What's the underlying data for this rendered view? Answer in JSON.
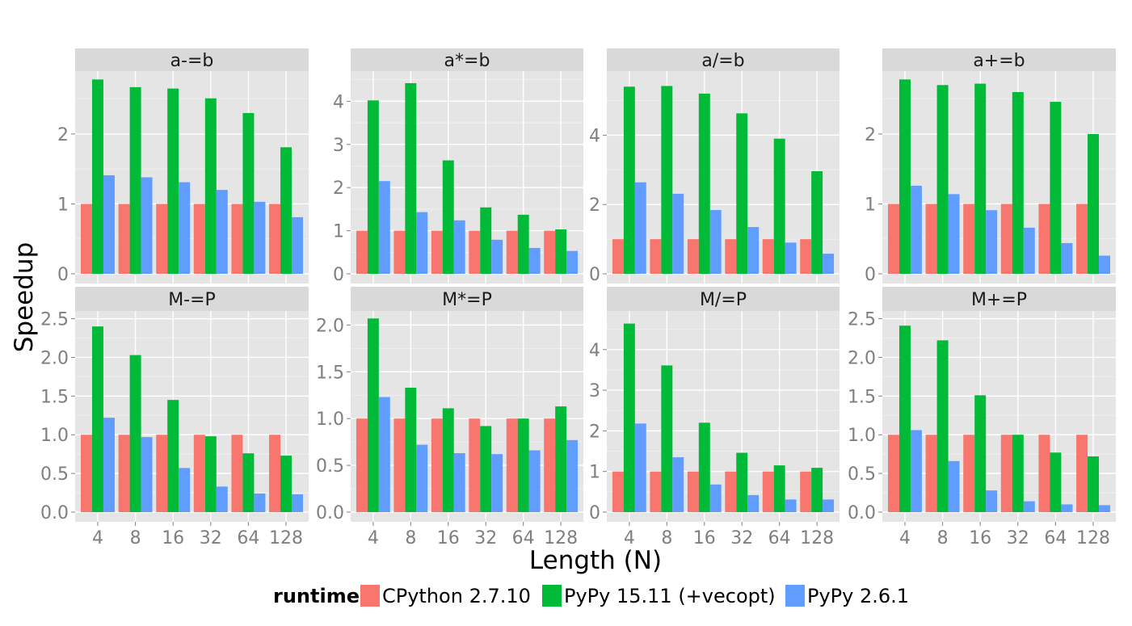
{
  "chart_data": {
    "type": "bar",
    "ylabel": "Speedup",
    "xlabel": "Length (N)",
    "categories": [
      "4",
      "8",
      "16",
      "32",
      "64",
      "128"
    ],
    "legend": {
      "title": "runtime",
      "position": "bottom",
      "entries": [
        {
          "name": "CPython 2.7.10",
          "color": "#F8766D"
        },
        {
          "name": "PyPy 15.11 (+vecopt)",
          "color": "#00BA38"
        },
        {
          "name": "PyPy 2.6.1",
          "color": "#619CFF"
        }
      ]
    },
    "grid": true,
    "panels": [
      {
        "title": "a-=b",
        "ylim": [
          0,
          2.9
        ],
        "yticks": [
          0,
          1,
          2
        ],
        "ytick_labels": [
          "0",
          "1",
          "2"
        ],
        "series": [
          {
            "name": "CPython 2.7.10",
            "values": [
              1,
              1,
              1,
              1,
              1,
              1
            ]
          },
          {
            "name": "PyPy 15.11 (+vecopt)",
            "values": [
              2.78,
              2.67,
              2.65,
              2.51,
              2.3,
              1.81
            ]
          },
          {
            "name": "PyPy 2.6.1",
            "values": [
              1.41,
              1.38,
              1.31,
              1.2,
              1.03,
              0.81
            ]
          }
        ]
      },
      {
        "title": "a*=b",
        "ylim": [
          0,
          4.7
        ],
        "yticks": [
          0,
          1,
          2,
          3,
          4
        ],
        "ytick_labels": [
          "0",
          "1",
          "2",
          "3",
          "4"
        ],
        "series": [
          {
            "name": "CPython 2.7.10",
            "values": [
              1,
              1,
              1,
              1,
              1,
              1
            ]
          },
          {
            "name": "PyPy 15.11 (+vecopt)",
            "values": [
              4.02,
              4.42,
              2.63,
              1.54,
              1.37,
              1.03
            ]
          },
          {
            "name": "PyPy 2.6.1",
            "values": [
              2.15,
              1.43,
              1.24,
              0.79,
              0.6,
              0.53
            ]
          }
        ]
      },
      {
        "title": "a/=b",
        "ylim": [
          0,
          5.85
        ],
        "yticks": [
          0,
          2,
          4
        ],
        "ytick_labels": [
          "0",
          "2",
          "4"
        ],
        "series": [
          {
            "name": "CPython 2.7.10",
            "values": [
              1,
              1,
              1,
              1,
              1,
              1
            ]
          },
          {
            "name": "PyPy 15.11 (+vecopt)",
            "values": [
              5.4,
              5.42,
              5.2,
              4.63,
              3.9,
              2.96
            ]
          },
          {
            "name": "PyPy 2.6.1",
            "values": [
              2.64,
              2.31,
              1.84,
              1.35,
              0.9,
              0.58
            ]
          }
        ]
      },
      {
        "title": "a+=b",
        "ylim": [
          0,
          2.9
        ],
        "yticks": [
          0,
          1,
          2
        ],
        "ytick_labels": [
          "0",
          "1",
          "2"
        ],
        "series": [
          {
            "name": "CPython 2.7.10",
            "values": [
              1,
              1,
              1,
              1,
              1,
              1
            ]
          },
          {
            "name": "PyPy 15.11 (+vecopt)",
            "values": [
              2.78,
              2.7,
              2.72,
              2.6,
              2.46,
              2.0
            ]
          },
          {
            "name": "PyPy 2.6.1",
            "values": [
              1.26,
              1.14,
              0.91,
              0.66,
              0.44,
              0.26
            ]
          }
        ]
      },
      {
        "title": "M-=P",
        "ylim": [
          0,
          2.6
        ],
        "yticks": [
          0,
          0.5,
          1,
          1.5,
          2,
          2.5
        ],
        "ytick_labels": [
          "0.0",
          "0.5",
          "1.0",
          "1.5",
          "2.0",
          "2.5"
        ],
        "series": [
          {
            "name": "CPython 2.7.10",
            "values": [
              1,
              1,
              1,
              1,
              1,
              1
            ]
          },
          {
            "name": "PyPy 15.11 (+vecopt)",
            "values": [
              2.4,
              2.03,
              1.45,
              0.98,
              0.76,
              0.73
            ]
          },
          {
            "name": "PyPy 2.6.1",
            "values": [
              1.22,
              0.97,
              0.57,
              0.33,
              0.24,
              0.23
            ]
          }
        ]
      },
      {
        "title": "M*=P",
        "ylim": [
          0,
          2.15
        ],
        "yticks": [
          0,
          0.5,
          1,
          1.5,
          2
        ],
        "ytick_labels": [
          "0.0",
          "0.5",
          "1.0",
          "1.5",
          "2.0"
        ],
        "series": [
          {
            "name": "CPython 2.7.10",
            "values": [
              1,
              1,
              1,
              1,
              1,
              1
            ]
          },
          {
            "name": "PyPy 15.11 (+vecopt)",
            "values": [
              2.07,
              1.33,
              1.11,
              0.92,
              1.0,
              1.13
            ]
          },
          {
            "name": "PyPy 2.6.1",
            "values": [
              1.23,
              0.72,
              0.63,
              0.62,
              0.66,
              0.77
            ]
          }
        ]
      },
      {
        "title": "M/=P",
        "ylim": [
          0,
          4.95
        ],
        "yticks": [
          0,
          1,
          2,
          3,
          4
        ],
        "ytick_labels": [
          "0",
          "1",
          "2",
          "3",
          "4"
        ],
        "series": [
          {
            "name": "CPython 2.7.10",
            "values": [
              1,
              1,
              1,
              1,
              1,
              1
            ]
          },
          {
            "name": "PyPy 15.11 (+vecopt)",
            "values": [
              4.64,
              3.61,
              2.2,
              1.46,
              1.15,
              1.09
            ]
          },
          {
            "name": "PyPy 2.6.1",
            "values": [
              2.18,
              1.35,
              0.68,
              0.42,
              0.31,
              0.31
            ]
          }
        ]
      },
      {
        "title": "M+=P",
        "ylim": [
          0,
          2.6
        ],
        "yticks": [
          0,
          0.5,
          1,
          1.5,
          2,
          2.5
        ],
        "ytick_labels": [
          "0.0",
          "0.5",
          "1.0",
          "1.5",
          "2.0",
          "2.5"
        ],
        "series": [
          {
            "name": "CPython 2.7.10",
            "values": [
              1,
              1,
              1,
              1,
              1,
              1
            ]
          },
          {
            "name": "PyPy 15.11 (+vecopt)",
            "values": [
              2.41,
              2.22,
              1.51,
              1.0,
              0.77,
              0.72
            ]
          },
          {
            "name": "PyPy 2.6.1",
            "values": [
              1.06,
              0.66,
              0.28,
              0.14,
              0.1,
              0.09
            ]
          }
        ]
      }
    ]
  }
}
